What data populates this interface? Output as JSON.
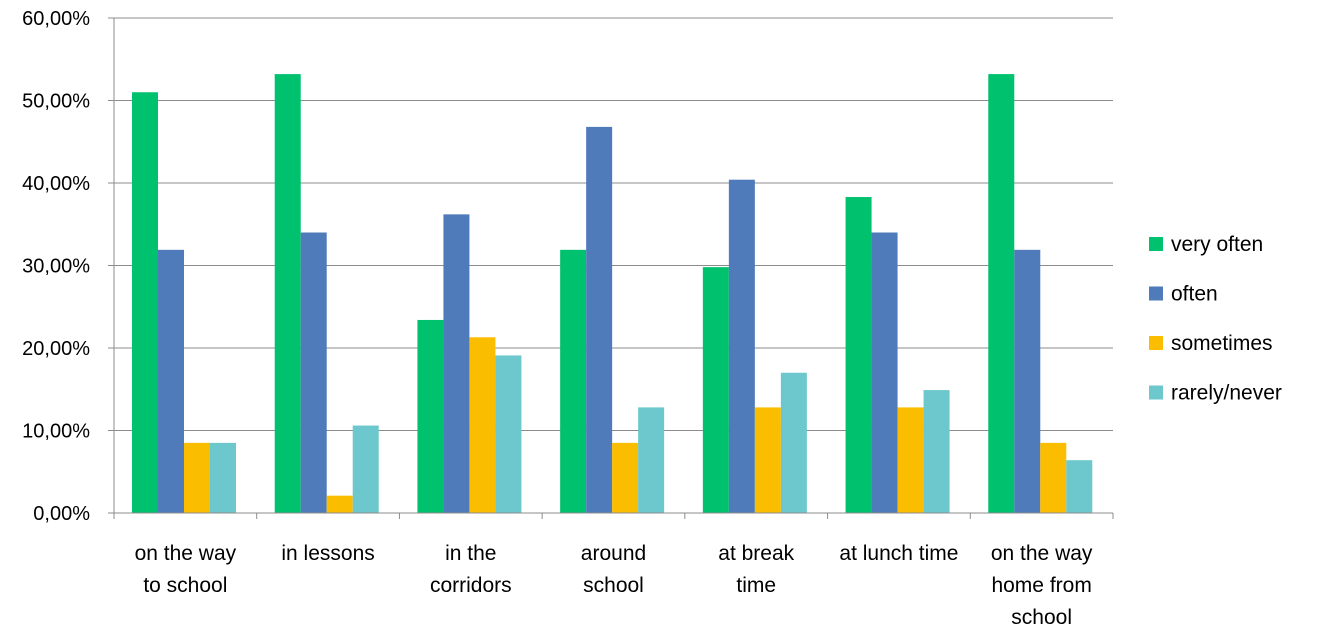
{
  "chart_data": {
    "type": "bar",
    "categories": [
      [
        "on the way",
        "to school"
      ],
      [
        "in lessons"
      ],
      [
        "in the",
        "corridors"
      ],
      [
        "around",
        "school"
      ],
      [
        "at break",
        "time"
      ],
      [
        "at lunch time"
      ],
      [
        "on the way",
        "home from",
        "school"
      ]
    ],
    "series": [
      {
        "name": "very often",
        "color": "#00C16E",
        "values": [
          51.0,
          53.2,
          23.4,
          31.9,
          29.8,
          38.3,
          53.2
        ]
      },
      {
        "name": "often",
        "color": "#4F7BBA",
        "values": [
          31.9,
          34.0,
          36.2,
          46.8,
          40.4,
          34.0,
          31.9
        ]
      },
      {
        "name": "sometimes",
        "color": "#FBBD00",
        "values": [
          8.5,
          2.1,
          21.3,
          8.5,
          12.8,
          12.8,
          8.5
        ]
      },
      {
        "name": "rarely/never",
        "color": "#6CC8CC",
        "values": [
          8.5,
          10.6,
          19.1,
          12.8,
          17.0,
          14.9,
          6.4
        ]
      }
    ],
    "ylim": [
      0,
      60
    ],
    "yticks": [
      0,
      10,
      20,
      30,
      40,
      50,
      60
    ],
    "ytick_labels": [
      "0,00%",
      "10,00%",
      "20,00%",
      "30,00%",
      "40,00%",
      "50,00%",
      "60,00%"
    ],
    "grid": true,
    "legend": "right",
    "title": "",
    "xlabel": "",
    "ylabel": ""
  }
}
